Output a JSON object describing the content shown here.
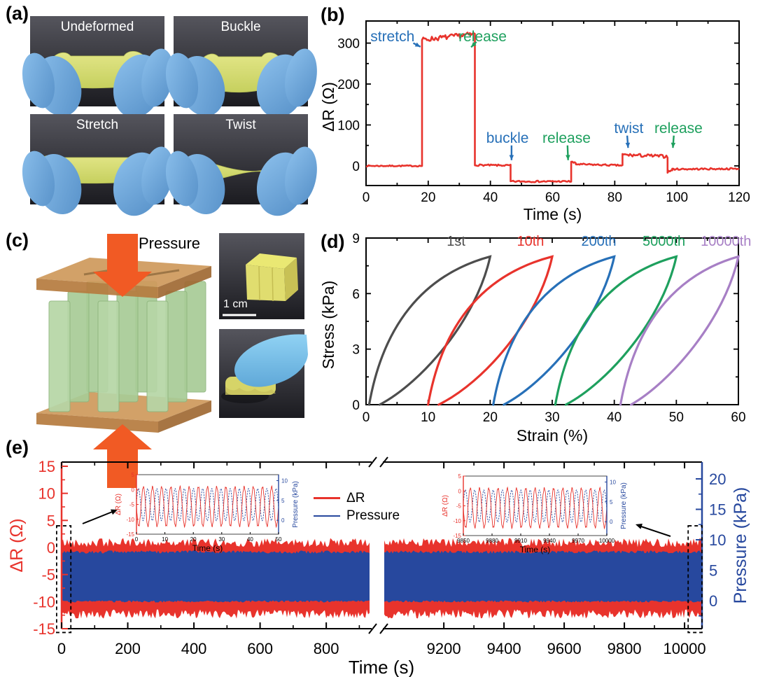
{
  "panel_labels": {
    "a": "(a)",
    "b": "(b)",
    "c": "(c)",
    "d": "(d)",
    "e": "(e)"
  },
  "panel_a": {
    "photos": [
      {
        "caption": "Undeformed",
        "pose": "undeformed"
      },
      {
        "caption": "Buckle",
        "pose": "buckle"
      },
      {
        "caption": "Stretch",
        "pose": "stretch"
      },
      {
        "caption": "Twist",
        "pose": "twist"
      }
    ]
  },
  "panel_c": {
    "pressure_label": "Pressure",
    "scale_bar_label": "1 cm"
  },
  "chart_data": [
    {
      "id": "b",
      "type": "line",
      "xlabel": "Time (s)",
      "ylabel": "ΔR (Ω)",
      "xlim": [
        0,
        120
      ],
      "xticks": [
        0,
        20,
        40,
        60,
        80,
        100,
        120
      ],
      "ylim": [
        -48,
        354
      ],
      "yticks": [
        0,
        100,
        200,
        300
      ],
      "line_color": "#e8332c",
      "grid": false,
      "segments": [
        {
          "t0": 0,
          "t1": 18,
          "v0": 0,
          "v1": 0,
          "noise": 1.5
        },
        {
          "t0": 18,
          "t1": 35,
          "v0": 308,
          "v1": 322,
          "noise": 6
        },
        {
          "t0": 35,
          "t1": 46.5,
          "v0": 2,
          "v1": 1,
          "noise": 2
        },
        {
          "t0": 46.5,
          "t1": 66,
          "v0": -38,
          "v1": -38,
          "noise": 2
        },
        {
          "t0": 66,
          "t1": 67.5,
          "v0": 10,
          "v1": 6,
          "noise": 2
        },
        {
          "t0": 67.5,
          "t1": 82.5,
          "v0": 4,
          "v1": 1,
          "noise": 2
        },
        {
          "t0": 82.5,
          "t1": 97,
          "v0": 27,
          "v1": 23,
          "noise": 4
        },
        {
          "t0": 97,
          "t1": 98.5,
          "v0": -15,
          "v1": -10,
          "noise": 2
        },
        {
          "t0": 98.5,
          "t1": 120,
          "v0": -8,
          "v1": -7,
          "noise": 2
        }
      ],
      "annotations": [
        {
          "text": "stretch",
          "color": "#2770b8",
          "label": {
            "t": 8.5,
            "r": 316
          },
          "arrow": {
            "from": {
              "t": 15.2,
              "r": 300
            },
            "to": {
              "t": 17.5,
              "r": 291
            }
          }
        },
        {
          "text": "release",
          "color": "#1ea05e",
          "label": {
            "t": 37.5,
            "r": 316
          },
          "arrow": {
            "from": {
              "t": 35.5,
              "r": 303
            },
            "to": {
              "t": 33.8,
              "r": 290
            }
          }
        },
        {
          "text": "buckle",
          "color": "#2770b8",
          "label": {
            "t": 45.5,
            "r": 68
          },
          "arrow": {
            "from": {
              "t": 46.8,
              "r": 50
            },
            "to": {
              "t": 46.8,
              "r": 14
            }
          }
        },
        {
          "text": "release",
          "color": "#1ea05e",
          "label": {
            "t": 64.5,
            "r": 68
          },
          "arrow": {
            "from": {
              "t": 64.8,
              "r": 50
            },
            "to": {
              "t": 65,
              "r": 14
            }
          }
        },
        {
          "text": "twist",
          "color": "#2770b8",
          "label": {
            "t": 84.5,
            "r": 92
          },
          "arrow": {
            "from": {
              "t": 84,
              "r": 74
            },
            "to": {
              "t": 84.3,
              "r": 44
            }
          }
        },
        {
          "text": "release",
          "color": "#1ea05e",
          "label": {
            "t": 100.5,
            "r": 92
          },
          "arrow": {
            "from": {
              "t": 99,
              "r": 74
            },
            "to": {
              "t": 98.7,
              "r": 44
            }
          }
        }
      ]
    },
    {
      "id": "d",
      "type": "line",
      "xlabel": "Strain (%)",
      "ylabel": "Stress (kPa)",
      "xlim": [
        0,
        60
      ],
      "xticks": [
        0,
        10,
        20,
        30,
        40,
        50,
        60
      ],
      "ylim": [
        0,
        9
      ],
      "yticks": [
        0,
        3,
        6,
        9
      ],
      "peak_stress_kPa": 8,
      "grid": false,
      "series": [
        {
          "name": "1st",
          "color": "#4d4d4d",
          "strain_start": 0.5,
          "strain_end": 20,
          "label_x": 14.5
        },
        {
          "name": "10th",
          "color": "#e8332c",
          "strain_start": 10,
          "strain_end": 30,
          "label_x": 26.5
        },
        {
          "name": "200th",
          "color": "#2770b8",
          "strain_start": 20.5,
          "strain_end": 40,
          "label_x": 37.5
        },
        {
          "name": "5000th",
          "color": "#1ea05e",
          "strain_start": 30.5,
          "strain_end": 50,
          "label_x": 48
        },
        {
          "name": "10000th",
          "color": "#a77fc5",
          "strain_start": 41,
          "strain_end": 60,
          "label_x": 58
        }
      ]
    },
    {
      "id": "e",
      "type": "line",
      "xlabel": "Time (s)",
      "ylabel_left": "ΔR (Ω)",
      "ylabel_right": "Pressure (kPa)",
      "x_break": true,
      "x_segments": [
        {
          "range": [
            0,
            933
          ],
          "ticks": [
            0,
            200,
            400,
            600,
            800
          ]
        },
        {
          "range": [
            9002,
            10058
          ],
          "ticks": [
            9200,
            9400,
            9600,
            9800,
            10000
          ]
        }
      ],
      "ylim_left": [
        -15,
        15
      ],
      "yticks_left": [
        15,
        10,
        5,
        0,
        -5,
        -10,
        -15
      ],
      "ylim_right": [
        0,
        20
      ],
      "yticks_right": [
        20,
        15,
        10,
        5,
        0
      ],
      "series": [
        {
          "name": "ΔR",
          "color": "#e8332c",
          "osc_range": [
            -12.3,
            0.9
          ]
        },
        {
          "name": "Pressure",
          "color": "#27489e",
          "osc_range": [
            0,
            8
          ]
        }
      ],
      "zoom_boxes": [
        {
          "t0": -15,
          "t1": 28,
          "r0": 4,
          "r1": -15.7
        },
        {
          "t0": 10012,
          "t1": 10058,
          "r0": 4,
          "r1": -15.7
        }
      ],
      "insets": [
        {
          "xlim": [
            0,
            50
          ],
          "xticks": [
            0,
            10,
            20,
            30,
            40,
            50
          ]
        },
        {
          "xlim": [
            9850,
            10000
          ],
          "xticks": [
            9850,
            9880,
            9910,
            9940,
            9970,
            10000
          ]
        }
      ],
      "inset_axes": {
        "xlabel": "Time (s)",
        "ylabel_left": "ΔR (Ω)",
        "ylabel_right": "Pressure (kPa)",
        "ylim_left": [
          5,
          -15
        ],
        "yticks_left": [
          5,
          0,
          -5,
          -10,
          -15
        ],
        "ylim_right": [
          11.5,
          -3.5
        ],
        "yticks_right": [
          10,
          5,
          0
        ],
        "cycles_shown": 15.5
      }
    }
  ]
}
